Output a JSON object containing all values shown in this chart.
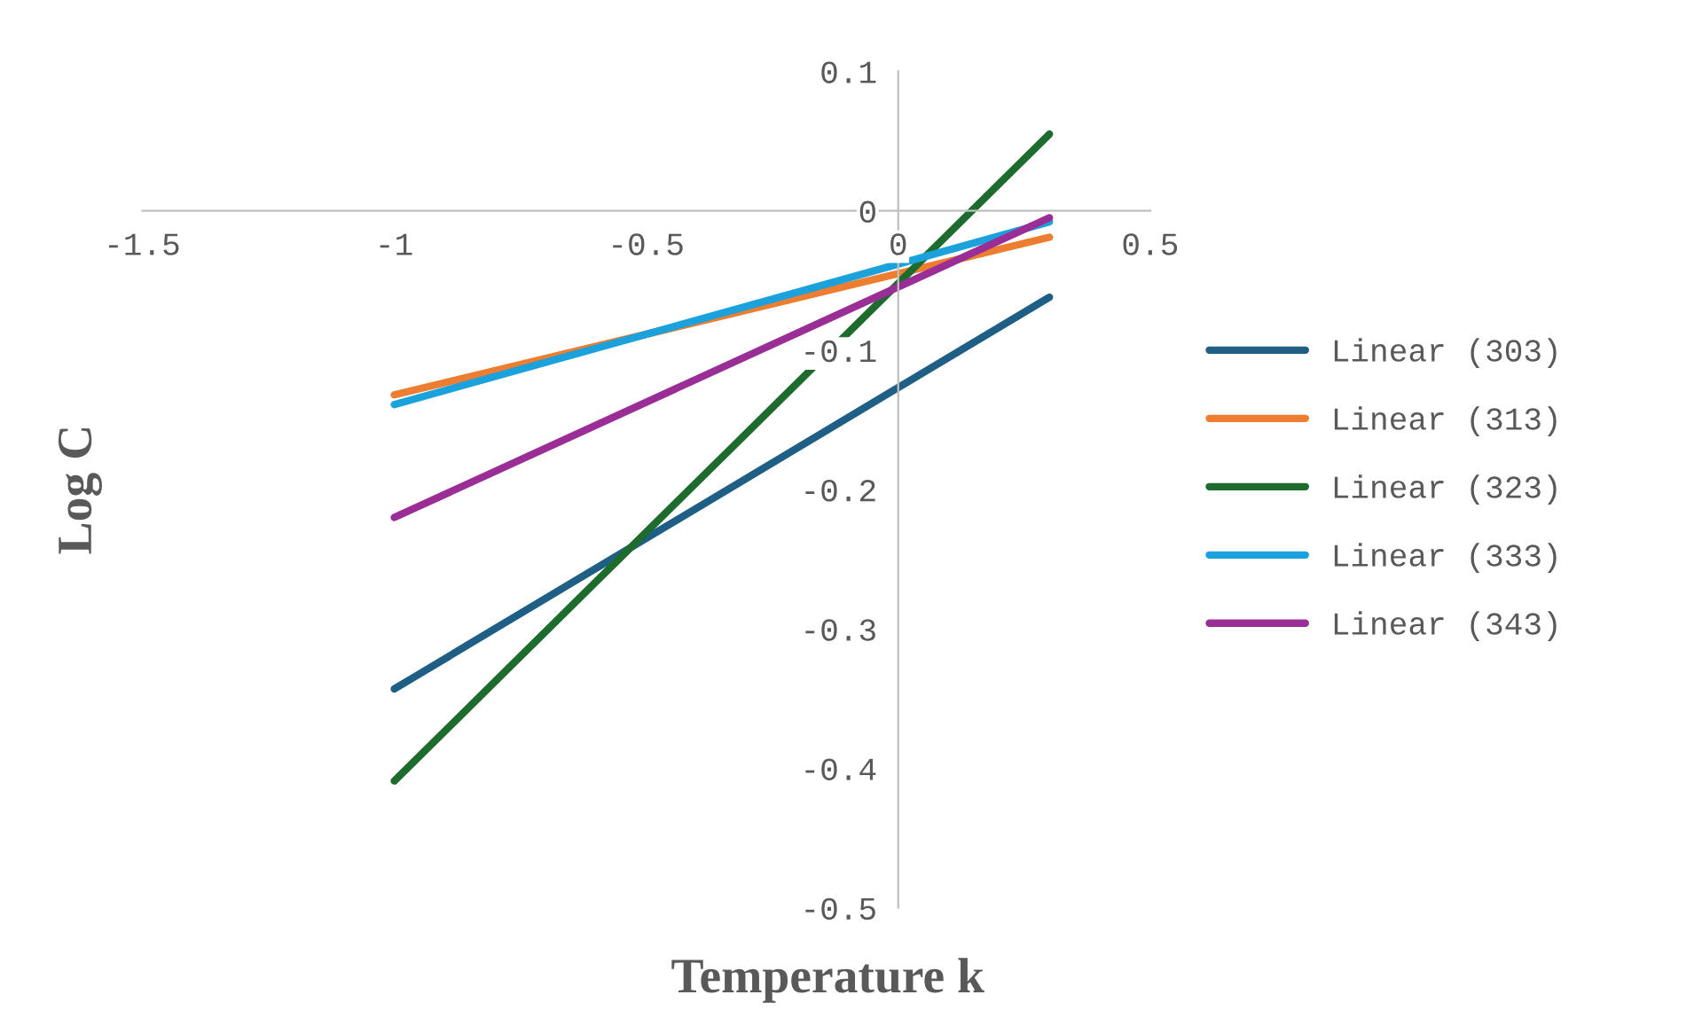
{
  "chart_data": {
    "type": "line",
    "xlabel": "Temperature k",
    "ylabel": "Log C",
    "x": [
      -1,
      0.3
    ],
    "series": [
      {
        "name": "Linear (303)",
        "color": "#1f5f85",
        "values": [
          -0.343,
          -0.062
        ]
      },
      {
        "name": "Linear (313)",
        "color": "#ed7d31",
        "values": [
          -0.132,
          -0.019
        ]
      },
      {
        "name": "Linear (323)",
        "color": "#1e6b2e",
        "values": [
          -0.409,
          0.055
        ]
      },
      {
        "name": "Linear (333)",
        "color": "#1ba1dc",
        "values": [
          -0.139,
          -0.008
        ]
      },
      {
        "name": "Linear (343)",
        "color": "#9b2d96",
        "values": [
          -0.22,
          -0.005
        ]
      }
    ],
    "xlim": [
      -1.5,
      0.5
    ],
    "xticks": [
      -1.5,
      -1,
      -0.5,
      0,
      0.5
    ],
    "ylim": [
      -0.5,
      0.1
    ],
    "yticks": [
      -0.5,
      -0.4,
      -0.3,
      -0.2,
      -0.1,
      0,
      0.1
    ],
    "grid": false,
    "legend": "right",
    "marker": "none",
    "line_style": "solid"
  }
}
